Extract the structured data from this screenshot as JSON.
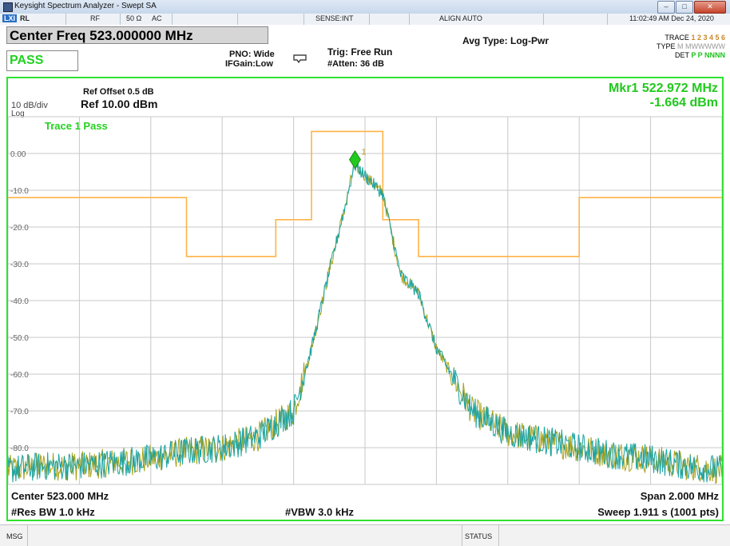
{
  "window": {
    "title": "Keysight Spectrum Analyzer - Swept SA",
    "controls": [
      "minimize-icon",
      "maximize-icon",
      "close-icon"
    ]
  },
  "status_bar": {
    "badge": "LXI",
    "rl": "RL",
    "rf": "RF",
    "impedance": "50 Ω",
    "coupling": "AC",
    "sense": "SENSE:INT",
    "align": "ALIGN AUTO",
    "datetime": "11:02:49 AM Dec 24, 2020"
  },
  "header": {
    "center_freq": "Center Freq 523.000000 MHz",
    "pass": "PASS",
    "pno": "PNO: Wide",
    "ifgain": "IFGain:Low",
    "trig": "Trig: Free Run",
    "atten": "#Atten: 36 dB",
    "avg_type": "Avg Type: Log-Pwr",
    "trace_label": "TRACE",
    "trace_values": "1 2 3 4 5 6",
    "type_label": "TYPE",
    "type_values": "M MWWWWW",
    "det_label": "DET",
    "det_values": "P P NNNN"
  },
  "display": {
    "ref_offset": "Ref Offset 0.5 dB",
    "scale": "10 dB/div",
    "log": "Log",
    "ref_level": "Ref 10.00 dBm",
    "marker_freq": "Mkr1 522.972 MHz",
    "marker_amp": "-1.664 dBm",
    "trace_pass": "Trace 1 Pass",
    "marker_label": "1",
    "y_ticks": [
      "0.00",
      "-10.0",
      "-20.0",
      "-30.0",
      "-40.0",
      "-50.0",
      "-60.0",
      "-70.0",
      "-80.0"
    ],
    "center": "Center 523.000 MHz",
    "span": "Span 2.000 MHz",
    "res_bw": "#Res BW 1.0 kHz",
    "vbw": "#VBW 3.0 kHz",
    "sweep": "Sweep  1.911 s (1001 pts)"
  },
  "message_bar": {
    "msg": "MSG",
    "status": "STATUS"
  },
  "colors": {
    "limit_line": "#ffb347",
    "trace_teal": "#1aa3a3",
    "trace_olive": "#a7a21a",
    "marker": "#22c91e",
    "screen_border": "#2fe22f",
    "grid": "#c8c8c8"
  },
  "chart_data": {
    "type": "line",
    "x_unit": "MHz",
    "y_unit": "dBm",
    "xlim": [
      522.0,
      524.0
    ],
    "ylim": [
      -90,
      10
    ],
    "grid": true,
    "series": [
      {
        "name": "Trace 1",
        "x": [
          522.0,
          522.1,
          522.2,
          522.3,
          522.4,
          522.5,
          522.6,
          522.7,
          522.8,
          522.85,
          522.9,
          522.95,
          522.97,
          523.0,
          523.05,
          523.1,
          523.15,
          523.2,
          523.3,
          523.4,
          523.5,
          523.6,
          523.7,
          523.8,
          523.9,
          524.0
        ],
        "y": [
          -86,
          -85,
          -85,
          -84,
          -83,
          -81,
          -80,
          -77,
          -70,
          -53,
          -32,
          -12,
          -3,
          -6,
          -11,
          -33,
          -38,
          -53,
          -70,
          -76,
          -78,
          -80,
          -82,
          -83,
          -85,
          -86
        ]
      }
    ],
    "limit_line": {
      "x": [
        522.0,
        522.5,
        522.5,
        523.15,
        523.15,
        523.6,
        523.6,
        524.0
      ],
      "y": [
        -12,
        -12,
        -28,
        -28,
        -18,
        -18,
        -28,
        -28
      ]
    },
    "limit_line_upper_section": {
      "x": [
        522.85,
        522.85,
        523.05,
        523.05
      ],
      "y": [
        -18,
        6,
        6,
        -18
      ]
    },
    "marker": {
      "x": 522.972,
      "y": -1.664
    }
  }
}
